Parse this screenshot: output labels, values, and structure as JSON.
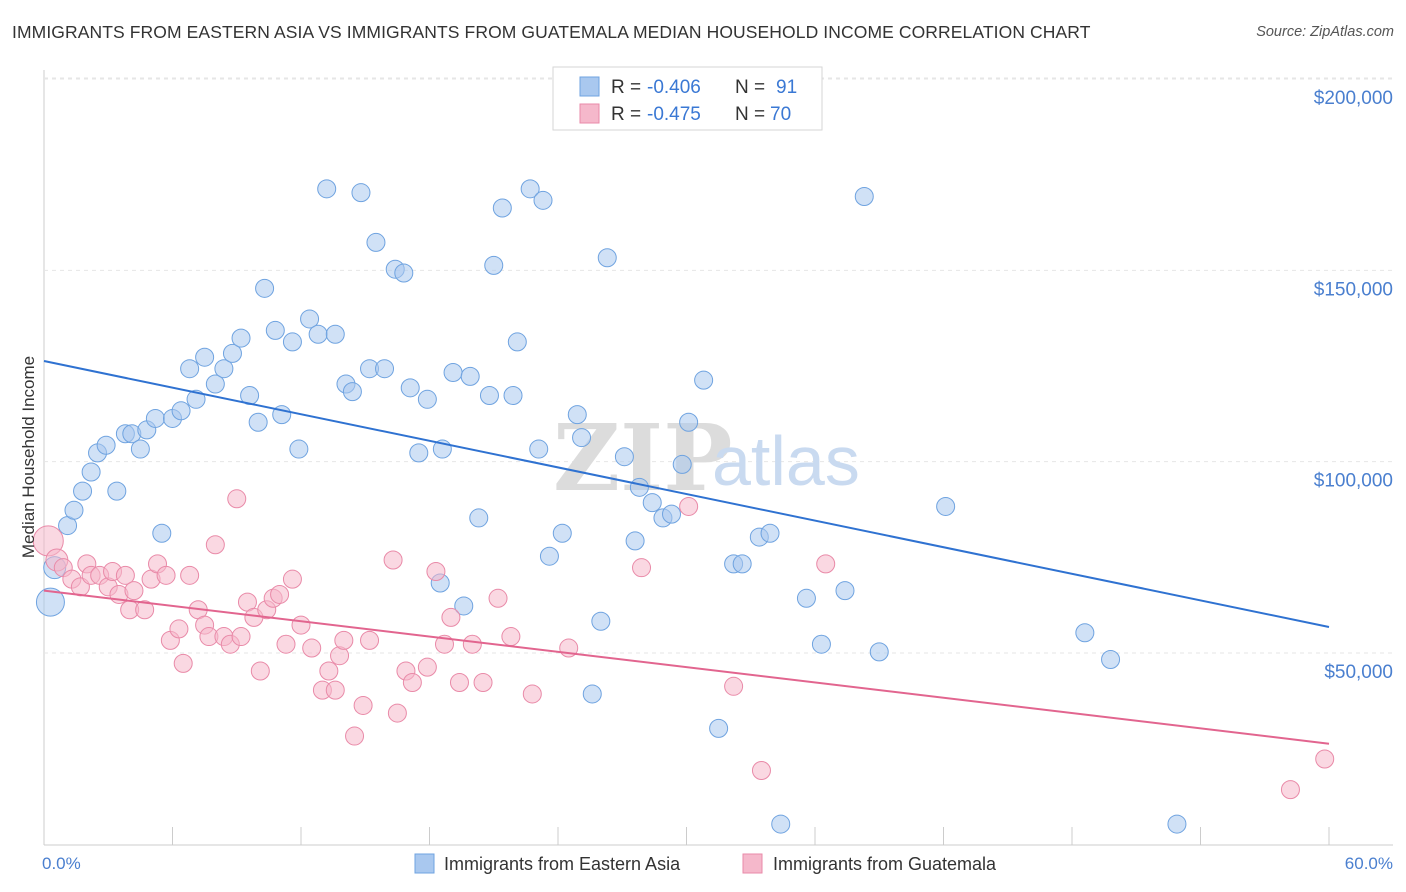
{
  "header": {
    "title": "IMMIGRANTS FROM EASTERN ASIA VS IMMIGRANTS FROM GUATEMALA MEDIAN HOUSEHOLD INCOME CORRELATION CHART",
    "source": "Source: ZipAtlas.com"
  },
  "watermark": {
    "zip": "ZIP",
    "atlas": "atlas"
  },
  "legend_top": {
    "rows": [
      {
        "r_label": "R =",
        "r_value": "-0.406",
        "n_label": "N =",
        "n_value": "91",
        "color": "#a9c8ef"
      },
      {
        "r_label": "R =",
        "r_value": "-0.475",
        "n_label": "N =",
        "n_value": "70",
        "color": "#f5b8cb"
      }
    ]
  },
  "legend_bottom": {
    "items": [
      {
        "label": "Immigrants from Eastern Asia",
        "color": "#a9c8ef"
      },
      {
        "label": "Immigrants from Guatemala",
        "color": "#f5b8cb"
      }
    ]
  },
  "chart_data": {
    "type": "scatter",
    "title": "IMMIGRANTS FROM EASTERN ASIA VS IMMIGRANTS FROM GUATEMALA MEDIAN HOUSEHOLD INCOME CORRELATION CHART",
    "xlabel": "",
    "ylabel": "Median Household Income",
    "xlim": [
      0,
      60
    ],
    "ylim": [
      0,
      210000
    ],
    "x_tick_labels": [
      "0.0%",
      "60.0%"
    ],
    "y_ticks": [
      50000,
      100000,
      150000,
      200000
    ],
    "y_tick_labels": [
      "$50,000",
      "$100,000",
      "$150,000",
      "$200,000"
    ],
    "grid": true,
    "legend_placement": "top-center",
    "series": [
      {
        "name": "Immigrants from Eastern Asia",
        "color": "#6fa3e0",
        "fill": "#a9c8ef",
        "trend": {
          "x": [
            0,
            60
          ],
          "y": [
            131000,
            61500
          ],
          "color": "#2f72d1"
        },
        "points": [
          [
            0.3,
            68000
          ],
          [
            0.5,
            77000
          ],
          [
            1.1,
            88000
          ],
          [
            1.4,
            92000
          ],
          [
            1.8,
            97000
          ],
          [
            2.2,
            102000
          ],
          [
            2.5,
            107000
          ],
          [
            2.9,
            109000
          ],
          [
            3.4,
            97000
          ],
          [
            3.8,
            112000
          ],
          [
            4.1,
            112000
          ],
          [
            4.5,
            108000
          ],
          [
            4.8,
            113000
          ],
          [
            5.2,
            116000
          ],
          [
            5.5,
            86000
          ],
          [
            6.0,
            116000
          ],
          [
            6.4,
            118000
          ],
          [
            6.8,
            129000
          ],
          [
            7.1,
            121000
          ],
          [
            7.5,
            132000
          ],
          [
            8.0,
            125000
          ],
          [
            8.4,
            129000
          ],
          [
            8.8,
            133000
          ],
          [
            9.2,
            137000
          ],
          [
            9.6,
            122000
          ],
          [
            10.0,
            115000
          ],
          [
            10.3,
            150000
          ],
          [
            10.8,
            139000
          ],
          [
            11.1,
            117000
          ],
          [
            11.6,
            136000
          ],
          [
            11.9,
            108000
          ],
          [
            12.4,
            142000
          ],
          [
            12.8,
            138000
          ],
          [
            13.2,
            176000
          ],
          [
            13.6,
            138000
          ],
          [
            14.1,
            125000
          ],
          [
            14.4,
            123000
          ],
          [
            14.8,
            175000
          ],
          [
            15.2,
            129000
          ],
          [
            15.5,
            162000
          ],
          [
            15.9,
            129000
          ],
          [
            16.4,
            155000
          ],
          [
            16.8,
            154000
          ],
          [
            17.1,
            124000
          ],
          [
            17.5,
            107000
          ],
          [
            17.9,
            121000
          ],
          [
            18.5,
            73000
          ],
          [
            18.6,
            108000
          ],
          [
            19.1,
            128000
          ],
          [
            19.6,
            67000
          ],
          [
            19.9,
            127000
          ],
          [
            20.3,
            90000
          ],
          [
            20.8,
            122000
          ],
          [
            21.0,
            156000
          ],
          [
            21.4,
            171000
          ],
          [
            21.9,
            122000
          ],
          [
            22.1,
            136000
          ],
          [
            22.7,
            176000
          ],
          [
            23.1,
            108000
          ],
          [
            23.3,
            173000
          ],
          [
            23.6,
            80000
          ],
          [
            24.2,
            86000
          ],
          [
            24.9,
            117000
          ],
          [
            25.1,
            111000
          ],
          [
            25.6,
            44000
          ],
          [
            26.0,
            63000
          ],
          [
            26.3,
            158000
          ],
          [
            27.1,
            106000
          ],
          [
            27.6,
            84000
          ],
          [
            27.8,
            98000
          ],
          [
            28.4,
            94000
          ],
          [
            28.9,
            90000
          ],
          [
            29.3,
            91000
          ],
          [
            29.8,
            104000
          ],
          [
            30.1,
            115000
          ],
          [
            30.8,
            126000
          ],
          [
            31.5,
            35000
          ],
          [
            32.2,
            78000
          ],
          [
            32.6,
            78000
          ],
          [
            33.4,
            85000
          ],
          [
            33.9,
            86000
          ],
          [
            34.4,
            10000
          ],
          [
            35.6,
            69000
          ],
          [
            36.3,
            57000
          ],
          [
            37.4,
            71000
          ],
          [
            38.3,
            174000
          ],
          [
            39.0,
            55000
          ],
          [
            42.1,
            93000
          ],
          [
            48.6,
            60000
          ],
          [
            49.8,
            53000
          ],
          [
            52.9,
            10000
          ]
        ]
      },
      {
        "name": "Immigrants from Guatemala",
        "color": "#e98aa8",
        "fill": "#f5b8cb",
        "trend": {
          "x": [
            0,
            60
          ],
          "y": [
            71000,
            31000
          ],
          "color": "#e2658f"
        },
        "points": [
          [
            0.2,
            84000
          ],
          [
            0.6,
            79000
          ],
          [
            0.9,
            77000
          ],
          [
            1.3,
            74000
          ],
          [
            1.7,
            72000
          ],
          [
            2.0,
            78000
          ],
          [
            2.2,
            75000
          ],
          [
            2.6,
            75000
          ],
          [
            3.0,
            72000
          ],
          [
            3.2,
            76000
          ],
          [
            3.5,
            70000
          ],
          [
            3.8,
            75000
          ],
          [
            4.0,
            66000
          ],
          [
            4.2,
            71000
          ],
          [
            4.7,
            66000
          ],
          [
            5.0,
            74000
          ],
          [
            5.3,
            78000
          ],
          [
            5.7,
            75000
          ],
          [
            5.9,
            58000
          ],
          [
            6.3,
            61000
          ],
          [
            6.5,
            52000
          ],
          [
            6.8,
            75000
          ],
          [
            7.2,
            66000
          ],
          [
            7.5,
            62000
          ],
          [
            7.7,
            59000
          ],
          [
            8.0,
            83000
          ],
          [
            8.4,
            59000
          ],
          [
            8.7,
            57000
          ],
          [
            9.0,
            95000
          ],
          [
            9.2,
            59000
          ],
          [
            9.5,
            68000
          ],
          [
            9.8,
            64000
          ],
          [
            10.1,
            50000
          ],
          [
            10.4,
            66000
          ],
          [
            10.7,
            69000
          ],
          [
            11.0,
            70000
          ],
          [
            11.3,
            57000
          ],
          [
            11.6,
            74000
          ],
          [
            12.0,
            62000
          ],
          [
            12.5,
            56000
          ],
          [
            13.0,
            45000
          ],
          [
            13.3,
            50000
          ],
          [
            13.6,
            45000
          ],
          [
            13.8,
            54000
          ],
          [
            14.0,
            58000
          ],
          [
            14.5,
            33000
          ],
          [
            14.9,
            41000
          ],
          [
            15.2,
            58000
          ],
          [
            16.3,
            79000
          ],
          [
            16.5,
            39000
          ],
          [
            16.9,
            50000
          ],
          [
            17.2,
            47000
          ],
          [
            17.9,
            51000
          ],
          [
            18.3,
            76000
          ],
          [
            18.7,
            57000
          ],
          [
            19.0,
            64000
          ],
          [
            19.4,
            47000
          ],
          [
            20.0,
            57000
          ],
          [
            20.5,
            47000
          ],
          [
            21.2,
            69000
          ],
          [
            21.8,
            59000
          ],
          [
            22.8,
            44000
          ],
          [
            24.5,
            56000
          ],
          [
            27.9,
            77000
          ],
          [
            30.1,
            93000
          ],
          [
            32.2,
            46000
          ],
          [
            33.5,
            24000
          ],
          [
            36.5,
            78000
          ],
          [
            59.8,
            27000
          ],
          [
            58.2,
            19000
          ]
        ]
      }
    ]
  }
}
